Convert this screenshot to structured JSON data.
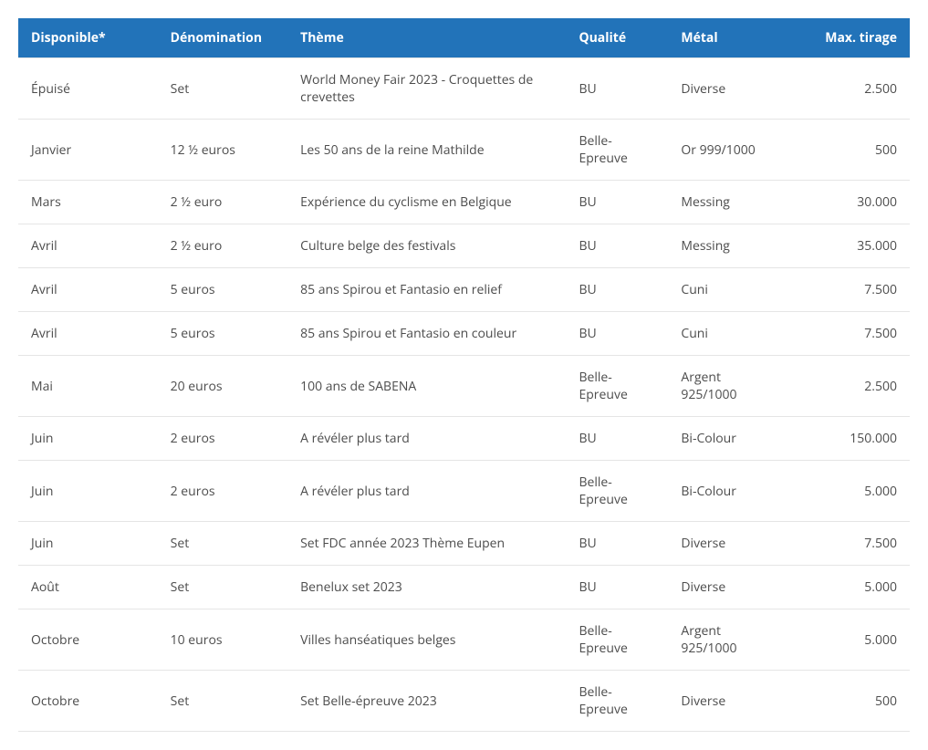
{
  "table": {
    "header_bg": "#2273b9",
    "header_fg": "#ffffff",
    "body_fg": "#4c4c4c",
    "border_color": "#e5e5e5",
    "columns": [
      {
        "key": "disponible",
        "label": "Disponible*",
        "align": "left"
      },
      {
        "key": "denomination",
        "label": "Dénomination",
        "align": "left"
      },
      {
        "key": "theme",
        "label": "Thème",
        "align": "left"
      },
      {
        "key": "qualite",
        "label": "Qualité",
        "align": "left"
      },
      {
        "key": "metal",
        "label": "Métal",
        "align": "left"
      },
      {
        "key": "max_tirage",
        "label": "Max. tirage",
        "align": "right"
      }
    ],
    "rows": [
      {
        "disponible": "Épuisé",
        "denomination": "Set",
        "theme": "World Money Fair 2023 - Croquettes de crevettes",
        "qualite": "BU",
        "metal": "Diverse",
        "max_tirage": "2.500"
      },
      {
        "disponible": "Janvier",
        "denomination": "12 ½ euros",
        "theme": "Les 50 ans de la reine Mathilde",
        "qualite": "Belle-Epreuve",
        "metal": "Or 999/1000",
        "max_tirage": "500"
      },
      {
        "disponible": "Mars",
        "denomination": "2 ½ euro",
        "theme": "Expérience du cyclisme en Belgique",
        "qualite": "BU",
        "metal": "Messing",
        "max_tirage": "30.000"
      },
      {
        "disponible": "Avril",
        "denomination": "2 ½ euro",
        "theme": "Culture belge des festivals",
        "qualite": "BU",
        "metal": "Messing",
        "max_tirage": "35.000"
      },
      {
        "disponible": "Avril",
        "denomination": "5 euros",
        "theme": "85 ans Spirou et Fantasio en relief",
        "qualite": "BU",
        "metal": "Cuni",
        "max_tirage": "7.500"
      },
      {
        "disponible": "Avril",
        "denomination": "5 euros",
        "theme": "85 ans Spirou et Fantasio en couleur",
        "qualite": "BU",
        "metal": "Cuni",
        "max_tirage": "7.500"
      },
      {
        "disponible": "Mai",
        "denomination": "20 euros",
        "theme": "100 ans de SABENA",
        "qualite": "Belle-Epreuve",
        "metal": "Argent 925/1000",
        "max_tirage": "2.500"
      },
      {
        "disponible": "Juin",
        "denomination": "2 euros",
        "theme": "A révéler plus tard",
        "qualite": "BU",
        "metal": "Bi-Colour",
        "max_tirage": "150.000"
      },
      {
        "disponible": "Juin",
        "denomination": "2 euros",
        "theme": "A révéler plus tard",
        "qualite": "Belle-Epreuve",
        "metal": "Bi-Colour",
        "max_tirage": "5.000"
      },
      {
        "disponible": "Juin",
        "denomination": "Set",
        "theme": "Set FDC année 2023 Thème Eupen",
        "qualite": "BU",
        "metal": "Diverse",
        "max_tirage": "7.500"
      },
      {
        "disponible": "Août",
        "denomination": "Set",
        "theme": "Benelux set 2023",
        "qualite": "BU",
        "metal": "Diverse",
        "max_tirage": "5.000"
      },
      {
        "disponible": "Octobre",
        "denomination": "10 euros",
        "theme": "Villes hanséatiques belges",
        "qualite": "Belle-Epreuve",
        "metal": "Argent 925/1000",
        "max_tirage": "5.000"
      },
      {
        "disponible": "Octobre",
        "denomination": "Set",
        "theme": "Set Belle-épreuve 2023",
        "qualite": "Belle-Epreuve",
        "metal": "Diverse",
        "max_tirage": "500"
      }
    ]
  }
}
